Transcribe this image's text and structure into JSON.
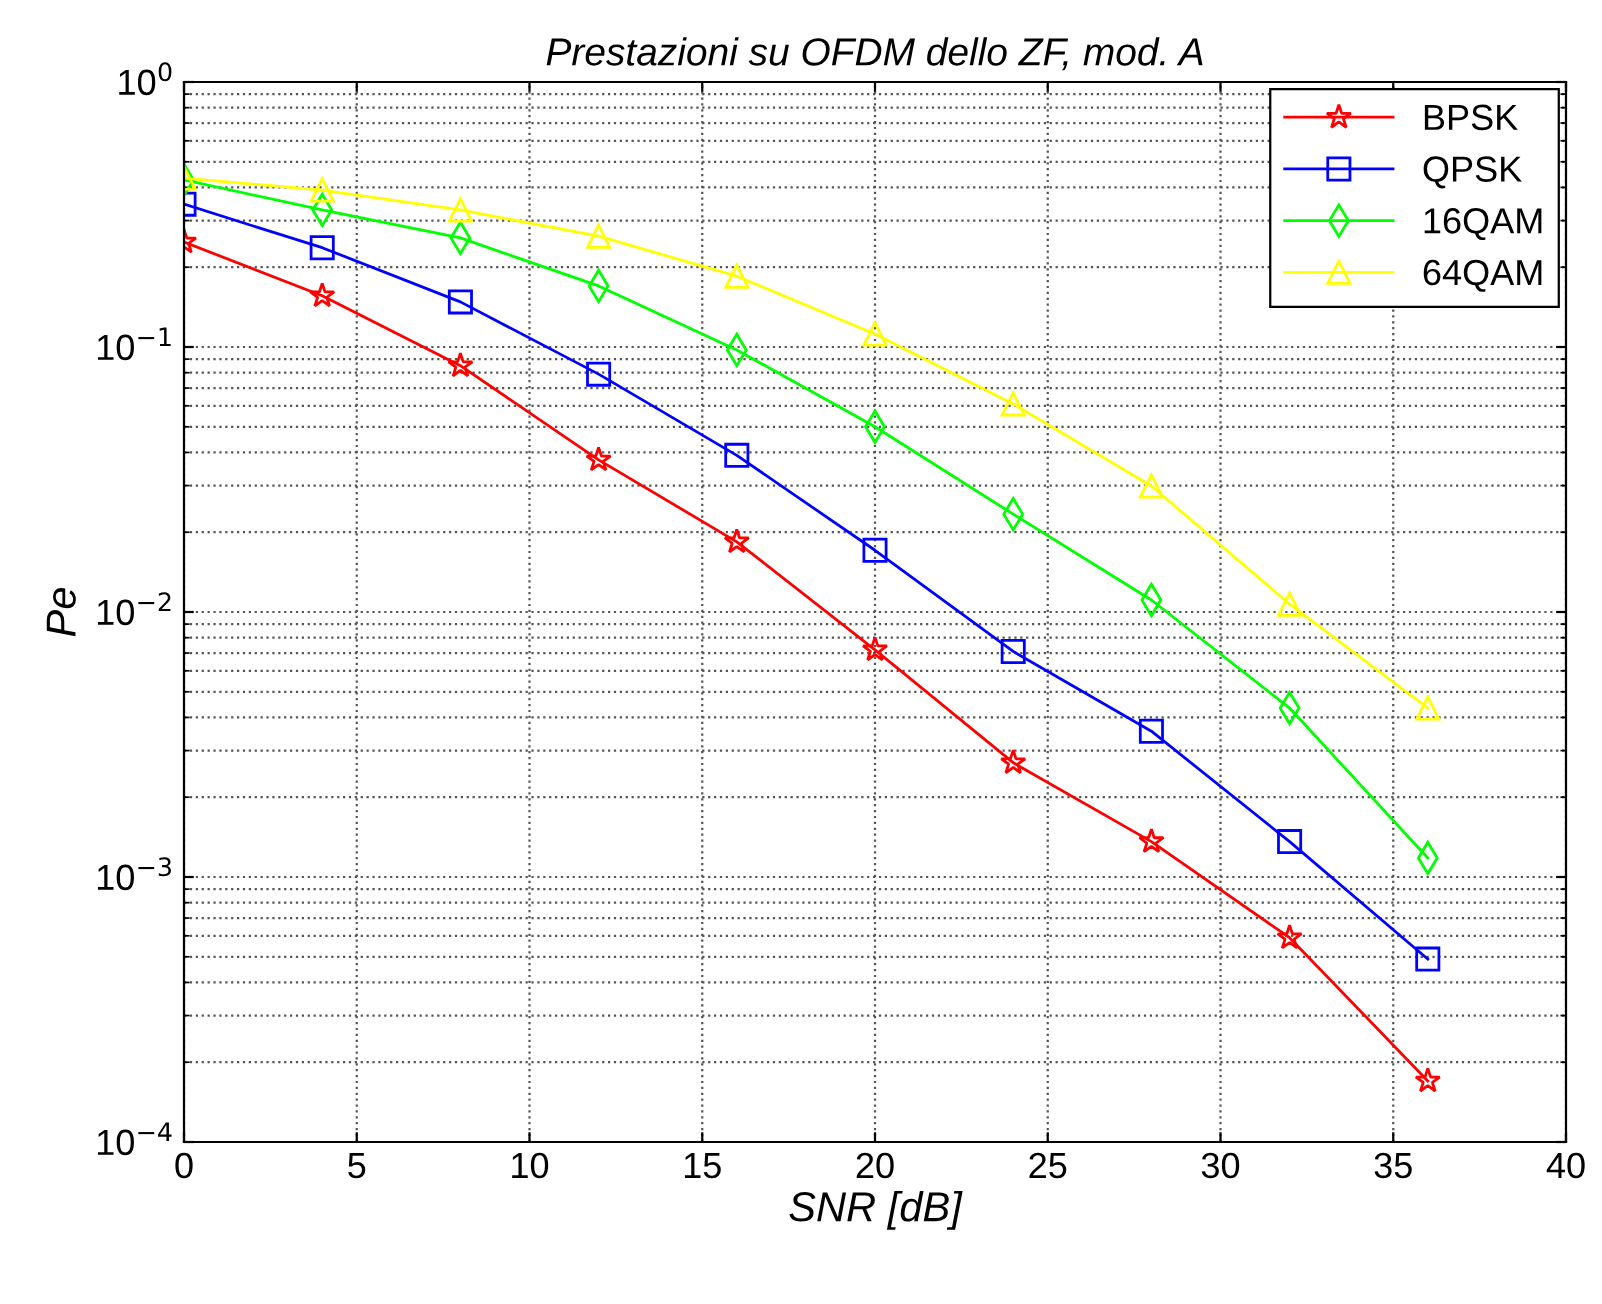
{
  "chart_data": {
    "type": "line",
    "title": "Prestazioni su OFDM dello ZF, mod. A",
    "xlabel": "SNR [dB]",
    "ylabel": "Pe",
    "log": "y",
    "grid": true,
    "legend": "top right",
    "line_style": "solid",
    "x": [
      0,
      4,
      8,
      12,
      16,
      20,
      24,
      28,
      32,
      36
    ],
    "xlim": [
      0,
      40
    ],
    "xticks": [
      0,
      5,
      10,
      15,
      20,
      25,
      30,
      35,
      40
    ],
    "ylim": [
      0.0001,
      1
    ],
    "yticks": [
      {
        "value": 0.0001,
        "label": "10$^{−4}$"
      },
      {
        "value": 0.001,
        "label": "10$^{−3}$"
      },
      {
        "value": 0.01,
        "label": "10$^{−2}$"
      },
      {
        "value": 0.1,
        "label": "10$^{−1}$"
      },
      {
        "value": 1,
        "label": "10$^{0}$"
      }
    ],
    "series": [
      {
        "name": "BPSK",
        "color": "#ff0000",
        "marker": "star",
        "values": [
          0.249,
          0.156,
          0.085,
          0.0375,
          0.0184,
          0.0072,
          0.0027,
          0.00136,
          0.00059,
          0.00017
        ]
      },
      {
        "name": "QPSK",
        "color": "#0000ff",
        "marker": "square",
        "values": [
          0.346,
          0.237,
          0.148,
          0.079,
          0.039,
          0.0171,
          0.0071,
          0.00355,
          0.00136,
          0.00049
        ]
      },
      {
        "name": "16QAM",
        "color": "#00ff00",
        "marker": "diamond",
        "values": [
          0.427,
          0.329,
          0.258,
          0.17,
          0.0975,
          0.05,
          0.0234,
          0.0111,
          0.00434,
          0.00118
        ]
      },
      {
        "name": "64QAM",
        "color": "#ffff00",
        "marker": "triangle",
        "values": [
          0.434,
          0.391,
          0.329,
          0.262,
          0.185,
          0.112,
          0.061,
          0.0299,
          0.0107,
          0.00434
        ]
      }
    ]
  }
}
